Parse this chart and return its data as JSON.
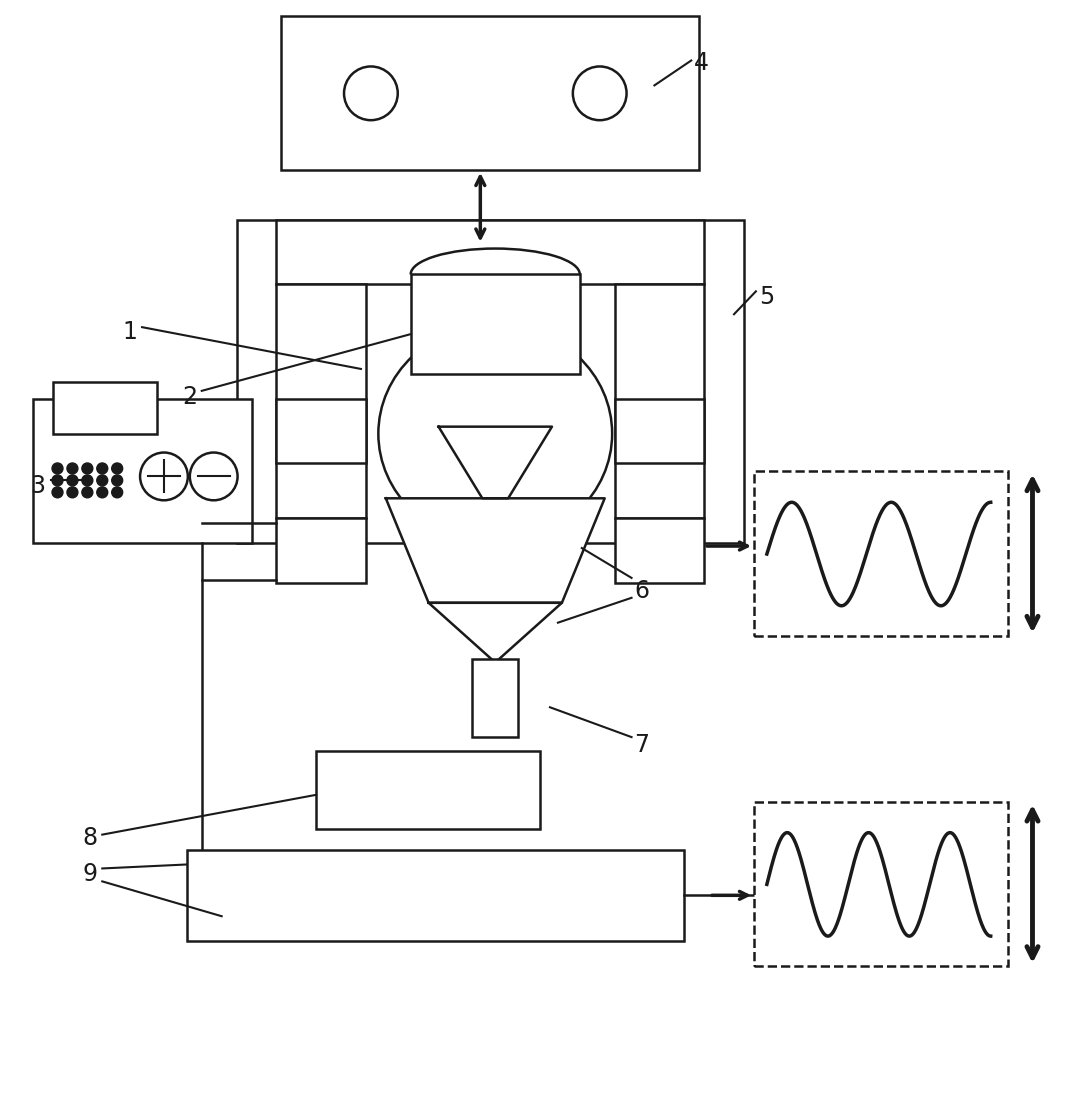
{
  "bg": "#ffffff",
  "lc": "#1a1a1a",
  "lw": 1.8,
  "lw2": 2.5,
  "lw3": 3.5,
  "fs": 17
}
